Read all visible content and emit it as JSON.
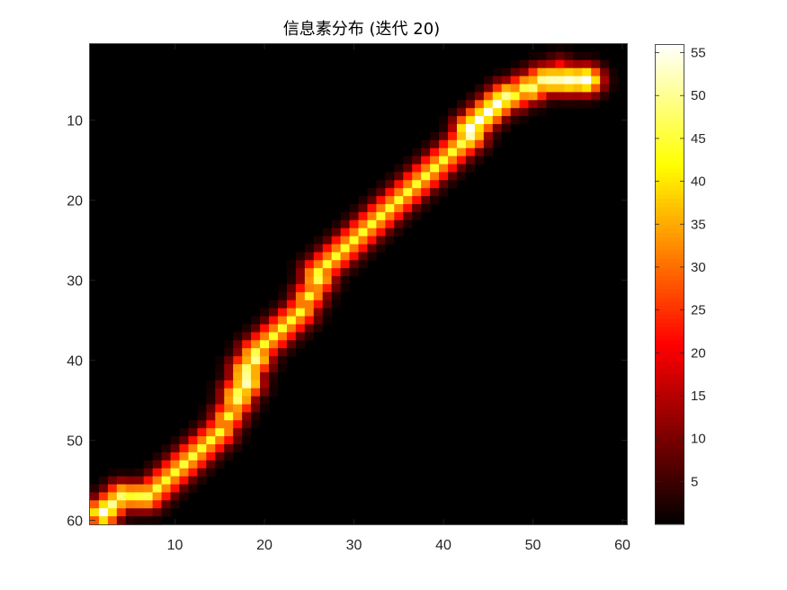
{
  "chart_data": {
    "type": "heatmap",
    "title": "信息素分布 (迭代 20)",
    "xlabel": "",
    "ylabel": "",
    "grid_size": [
      60,
      60
    ],
    "xlim": [
      0.5,
      60.5
    ],
    "ylim": [
      0.5,
      60.5
    ],
    "y_direction": "reversed",
    "x_ticks": [
      10,
      20,
      30,
      40,
      50,
      60
    ],
    "x_tick_labels": [
      "10",
      "20",
      "30",
      "40",
      "50",
      "60"
    ],
    "y_ticks": [
      10,
      20,
      30,
      40,
      50,
      60
    ],
    "y_tick_labels": [
      "10",
      "20",
      "30",
      "40",
      "50",
      "60"
    ],
    "colormap": "hot",
    "clim": [
      0,
      56
    ],
    "colorbar_ticks": [
      5,
      10,
      15,
      20,
      25,
      30,
      35,
      40,
      45,
      50,
      55
    ],
    "colorbar_tick_labels": [
      "5",
      "10",
      "15",
      "20",
      "25",
      "30",
      "35",
      "40",
      "45",
      "50",
      "55"
    ],
    "background_value": 0,
    "note_values": "pheromone intensity per grid cell; ridge points listed as [x, y, value]",
    "ridge": [
      [
        2,
        59,
        56
      ],
      [
        3,
        58,
        50
      ],
      [
        4,
        57,
        48
      ],
      [
        5,
        57,
        44
      ],
      [
        6,
        57,
        45
      ],
      [
        7,
        57,
        46
      ],
      [
        8,
        56,
        45
      ],
      [
        9,
        55,
        44
      ],
      [
        10,
        54,
        44
      ],
      [
        11,
        53,
        45
      ],
      [
        12,
        52,
        45
      ],
      [
        13,
        51,
        44
      ],
      [
        14,
        50,
        44
      ],
      [
        15,
        49,
        44
      ],
      [
        16,
        47,
        44
      ],
      [
        17,
        45,
        48
      ],
      [
        17,
        44,
        46
      ],
      [
        18,
        43,
        52
      ],
      [
        18,
        42,
        50
      ],
      [
        18,
        41,
        48
      ],
      [
        19,
        40,
        50
      ],
      [
        19,
        39,
        46
      ],
      [
        20,
        38,
        44
      ],
      [
        21,
        37,
        44
      ],
      [
        22,
        36,
        44
      ],
      [
        23,
        35,
        44
      ],
      [
        24,
        34,
        44
      ],
      [
        25,
        32,
        44
      ],
      [
        26,
        30,
        46
      ],
      [
        26,
        29,
        44
      ],
      [
        27,
        28,
        44
      ],
      [
        28,
        27,
        44
      ],
      [
        29,
        26,
        44
      ],
      [
        30,
        25,
        44
      ],
      [
        31,
        24,
        44
      ],
      [
        32,
        23,
        44
      ],
      [
        33,
        22,
        44
      ],
      [
        34,
        21,
        44
      ],
      [
        35,
        20,
        44
      ],
      [
        36,
        19,
        44
      ],
      [
        37,
        18,
        44
      ],
      [
        38,
        17,
        44
      ],
      [
        39,
        16,
        44
      ],
      [
        40,
        15,
        44
      ],
      [
        41,
        14,
        44
      ],
      [
        42,
        13,
        46
      ],
      [
        43,
        12,
        52
      ],
      [
        43,
        11,
        56
      ],
      [
        44,
        10,
        56
      ],
      [
        45,
        9,
        56
      ],
      [
        46,
        8,
        56
      ],
      [
        47,
        7,
        50
      ],
      [
        48,
        7,
        44
      ],
      [
        49,
        6,
        46
      ],
      [
        50,
        6,
        48
      ],
      [
        51,
        5,
        50
      ],
      [
        52,
        5,
        52
      ],
      [
        53,
        5,
        52
      ],
      [
        54,
        5,
        54
      ],
      [
        55,
        5,
        52
      ],
      [
        56,
        5,
        56
      ]
    ],
    "side_peaks": [
      [
        50,
        5,
        22
      ],
      [
        53,
        4,
        30
      ],
      [
        54,
        5,
        24
      ],
      [
        56,
        5,
        56
      ]
    ],
    "halo_width": 1.2
  }
}
